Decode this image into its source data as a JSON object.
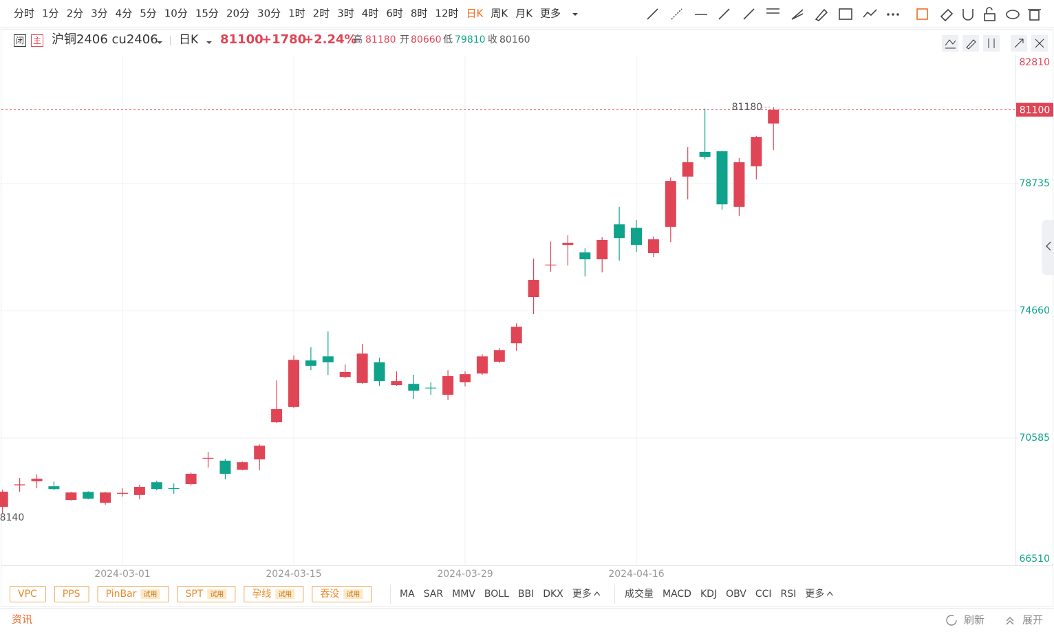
{
  "toolbar": {
    "periods": [
      "分时",
      "1分",
      "2分",
      "3分",
      "4分",
      "5分",
      "10分",
      "15分",
      "20分",
      "30分",
      "1时",
      "2时",
      "3时",
      "4时",
      "6时",
      "8时",
      "12时",
      "日K",
      "周K",
      "月K",
      "更多"
    ],
    "active": "日K"
  },
  "header": {
    "name": "沪铜2406 cu2406",
    "period": "日K",
    "price": "81100",
    "change": "+1780",
    "percent": "+2.24%",
    "high_label": "高",
    "high": "81180",
    "open_label": "开",
    "open": "80660",
    "low_label": "低",
    "low": "79810",
    "close_label": "收",
    "close": "80160"
  },
  "chart_data": {
    "type": "candlestick",
    "categories": [
      null,
      null,
      null,
      null,
      null,
      null,
      null,
      "2024-03-01",
      null,
      null,
      null,
      null,
      null,
      null,
      null,
      null,
      null,
      "2024-03-15",
      null,
      null,
      null,
      null,
      null,
      null,
      null,
      null,
      null,
      "2024-03-29",
      null,
      null,
      null,
      null,
      null,
      null,
      null,
      null,
      null,
      "2024-04-16",
      null,
      null,
      null,
      null,
      null,
      null,
      null,
      null
    ],
    "open": [
      68380,
      69070,
      69200,
      69040,
      68600,
      68860,
      68510,
      68800,
      68760,
      69170,
      68980,
      69110,
      69930,
      69860,
      69570,
      69900,
      71090,
      71580,
      73070,
      73200,
      72540,
      72350,
      73010,
      72280,
      72320,
      72200,
      71970,
      72370,
      72650,
      73030,
      73620,
      75100,
      76120,
      76770,
      76530,
      76310,
      77430,
      77320,
      76510,
      77350,
      78960,
      79750,
      79770,
      77990,
      79290,
      80660
    ],
    "high": [
      68930,
      69305,
      69420,
      69195,
      68860,
      68880,
      68860,
      68975,
      69090,
      69220,
      69130,
      69480,
      70140,
      69920,
      69830,
      70380,
      72430,
      73230,
      73490,
      74000,
      72940,
      73600,
      73160,
      72720,
      72610,
      72370,
      72760,
      72720,
      73270,
      73470,
      74260,
      76330,
      76880,
      77080,
      76660,
      77020,
      77990,
      77570,
      77040,
      78930,
      79900,
      81140,
      79790,
      79550,
      80260,
      81180
    ],
    "low": [
      68140,
      68865,
      68975,
      68910,
      68580,
      68620,
      68450,
      68710,
      68620,
      68910,
      68800,
      69060,
      69640,
      69260,
      69550,
      69550,
      71070,
      71550,
      72760,
      72610,
      72500,
      72320,
      72260,
      72260,
      71840,
      71970,
      71800,
      72240,
      72610,
      72990,
      73380,
      74550,
      75910,
      76110,
      75760,
      75890,
      76270,
      76550,
      76380,
      76860,
      78230,
      79510,
      77900,
      77700,
      78870,
      79810
    ],
    "close": [
      68865,
      69100,
      69280,
      68950,
      68840,
      68640,
      68840,
      68830,
      69020,
      68950,
      68975,
      69440,
      69950,
      69440,
      69810,
      70340,
      71510,
      73090,
      72900,
      73010,
      72700,
      73290,
      72410,
      72410,
      72100,
      72190,
      72570,
      72630,
      73200,
      73400,
      74150,
      75650,
      76140,
      76840,
      76310,
      76930,
      76990,
      76770,
      76950,
      78820,
      79420,
      79590,
      78070,
      79420,
      80230,
      81100
    ],
    "up_color": "#e04556",
    "down_color": "#10a38b",
    "ylim": [
      66510,
      82810
    ],
    "yticks": [
      66510,
      70585,
      74660,
      78735,
      82810
    ],
    "grid": true
  },
  "indicators": {
    "patterns": [
      {
        "name": "VPC"
      },
      {
        "name": "PPS"
      },
      {
        "name": "PinBar",
        "badge": "试用"
      },
      {
        "name": "SPT",
        "badge": "试用"
      },
      {
        "name": "孕线",
        "badge": "试用"
      },
      {
        "name": "吞没",
        "badge": "试用"
      }
    ],
    "main": [
      "MA",
      "SAR",
      "MMV",
      "BOLL",
      "BBI",
      "DKX",
      "更多"
    ],
    "sub": [
      "成交量",
      "MACD",
      "KDJ",
      "OBV",
      "CCI",
      "RSI",
      "更多"
    ]
  },
  "footer": {
    "news": "资讯",
    "refresh": "刷新",
    "expand": "展开"
  }
}
